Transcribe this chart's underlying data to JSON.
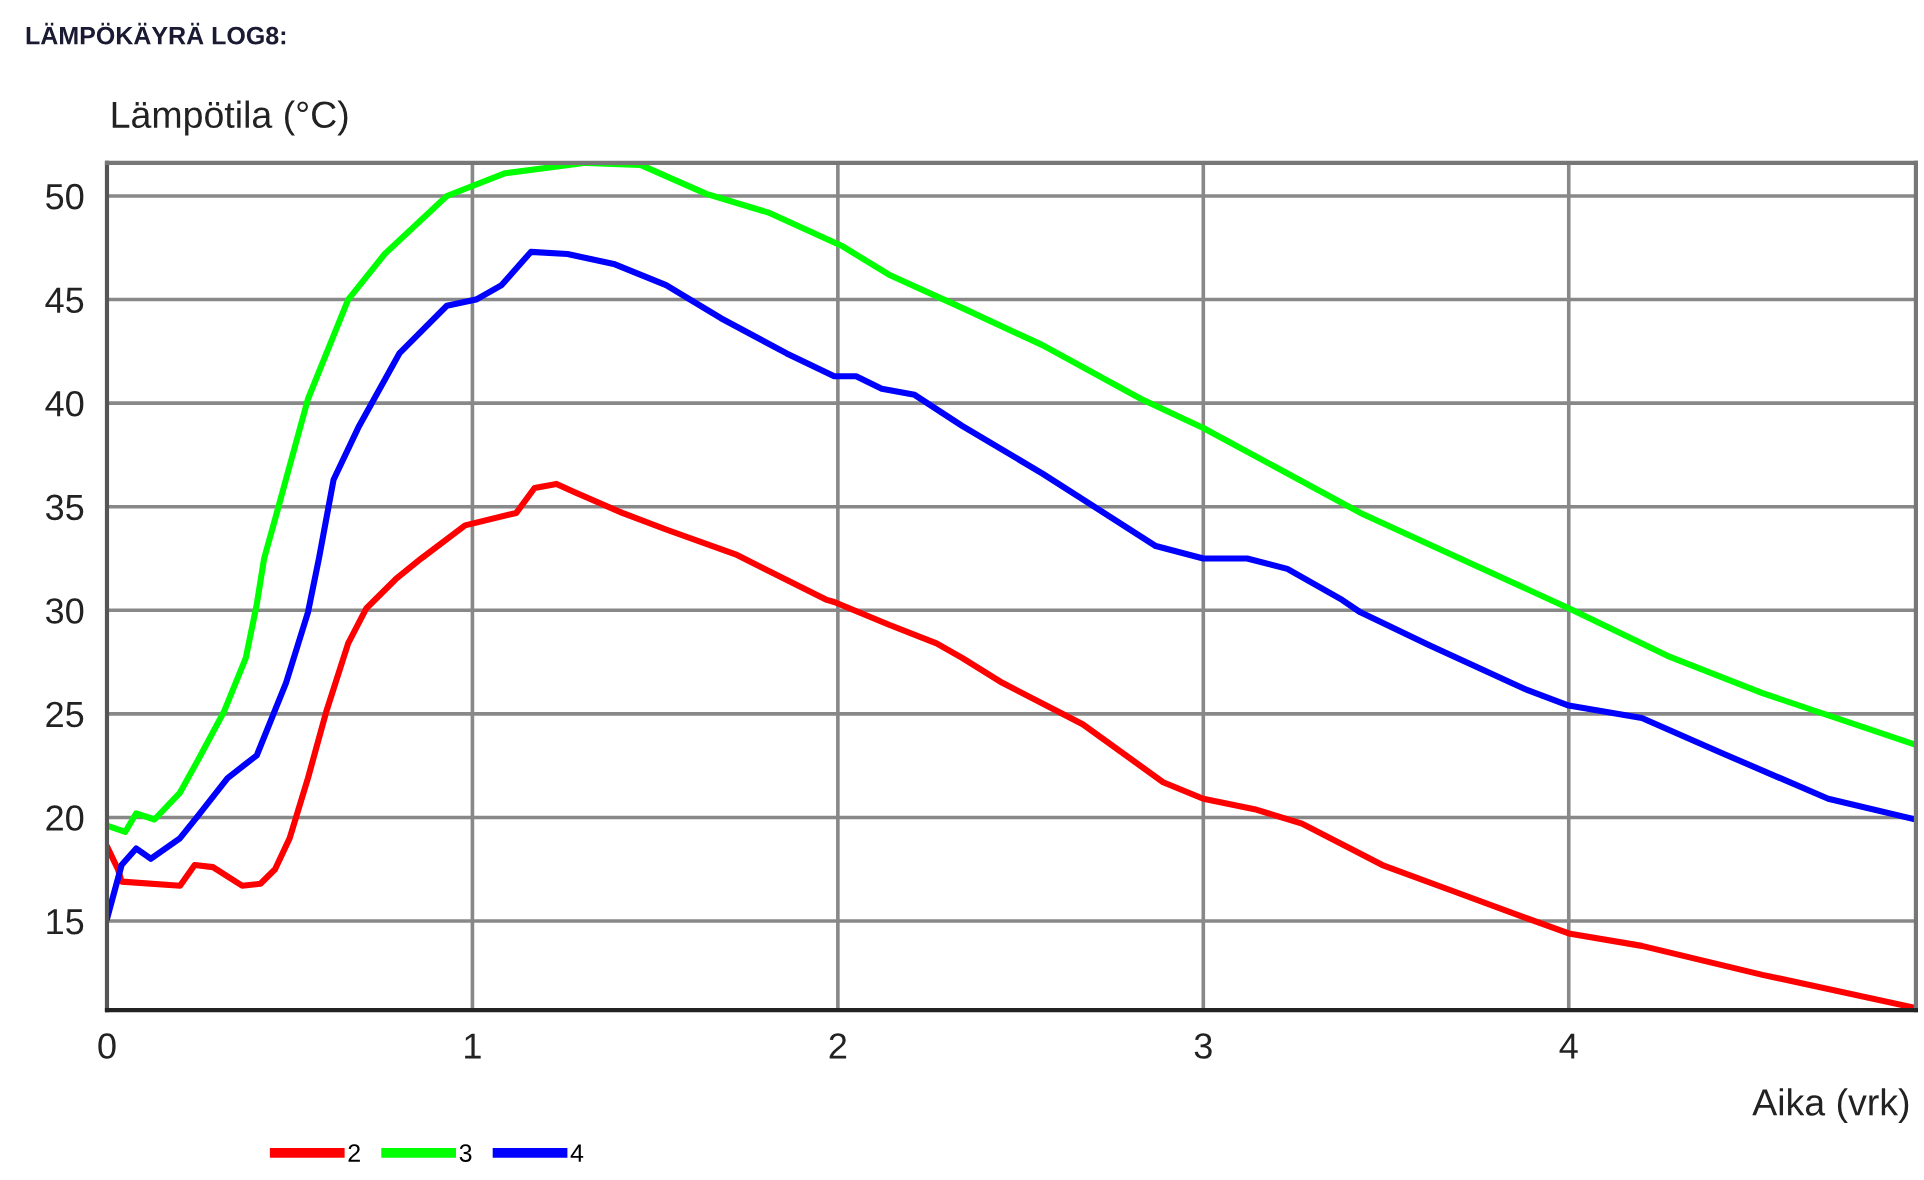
{
  "chart_data": {
    "type": "line",
    "title": "LÄMPÖKÄYRÄ LOG8:",
    "ylabel": "Lämpötila (°C)",
    "xlabel": "Aika (vrk)",
    "xlim": [
      0,
      4.95
    ],
    "ylim": [
      10.7,
      51.6
    ],
    "xticks": [
      0,
      1,
      2,
      3,
      4
    ],
    "yticks": [
      15,
      20,
      25,
      30,
      35,
      40,
      45,
      50
    ],
    "grid": true,
    "legend": "bottom",
    "line_style": "solid",
    "marker": "none",
    "series": [
      {
        "name": "2",
        "color": "#ff0000",
        "x": [
          0.0,
          0.03,
          0.04,
          0.2,
          0.24,
          0.29,
          0.37,
          0.42,
          0.46,
          0.5,
          0.55,
          0.6,
          0.66,
          0.71,
          0.79,
          0.86,
          0.98,
          1.12,
          1.17,
          1.23,
          1.28,
          1.41,
          1.53,
          1.72,
          1.97,
          1.99,
          2.14,
          2.27,
          2.34,
          2.45,
          2.67,
          2.89,
          3.0,
          3.14,
          3.27,
          3.49,
          3.69,
          3.89,
          4.0,
          4.2,
          4.53,
          4.95
        ],
        "values": [
          18.6,
          17.5,
          16.9,
          16.7,
          17.7,
          17.6,
          16.7,
          16.8,
          17.5,
          19.0,
          21.9,
          25.1,
          28.4,
          30.1,
          31.5,
          32.5,
          34.1,
          34.7,
          35.9,
          36.1,
          35.7,
          34.7,
          33.9,
          32.7,
          30.5,
          30.4,
          29.3,
          28.4,
          27.7,
          26.5,
          24.5,
          21.7,
          20.9,
          20.4,
          19.7,
          17.7,
          16.4,
          15.1,
          14.4,
          13.8,
          12.4,
          10.8
        ]
      },
      {
        "name": "3",
        "color": "#00ff00",
        "x": [
          0.0,
          0.05,
          0.08,
          0.13,
          0.2,
          0.25,
          0.32,
          0.38,
          0.41,
          0.43,
          0.46,
          0.55,
          0.66,
          0.76,
          0.93,
          1.09,
          1.31,
          1.46,
          1.64,
          1.81,
          2.01,
          2.14,
          2.34,
          2.56,
          2.83,
          3.0,
          3.43,
          4.0,
          4.27,
          4.53,
          4.95
        ],
        "values": [
          19.6,
          19.3,
          20.2,
          19.9,
          21.2,
          22.8,
          25.1,
          27.7,
          30.3,
          32.5,
          34.4,
          40.2,
          45.0,
          47.2,
          50.0,
          51.1,
          51.6,
          51.5,
          50.1,
          49.2,
          47.6,
          46.2,
          44.6,
          42.8,
          40.2,
          38.8,
          34.7,
          30.1,
          27.8,
          26.0,
          23.5
        ]
      },
      {
        "name": "4",
        "color": "#0000ff",
        "x": [
          0.0,
          0.04,
          0.08,
          0.12,
          0.2,
          0.25,
          0.33,
          0.41,
          0.49,
          0.55,
          0.58,
          0.62,
          0.69,
          0.8,
          0.93,
          1.01,
          1.08,
          1.16,
          1.26,
          1.39,
          1.53,
          1.68,
          1.86,
          1.99,
          2.05,
          2.12,
          2.21,
          2.34,
          2.56,
          2.87,
          3.0,
          3.12,
          3.23,
          3.38,
          3.43,
          3.62,
          3.88,
          4.0,
          4.2,
          4.42,
          4.71,
          4.95
        ],
        "values": [
          15.1,
          17.7,
          18.5,
          18.0,
          19.0,
          20.1,
          21.9,
          23.0,
          26.5,
          29.9,
          32.5,
          36.3,
          38.9,
          42.4,
          44.7,
          45.0,
          45.7,
          47.3,
          47.2,
          46.7,
          45.7,
          44.1,
          42.4,
          41.3,
          41.3,
          40.7,
          40.4,
          38.9,
          36.6,
          33.1,
          32.5,
          32.5,
          32.0,
          30.5,
          29.9,
          28.3,
          26.2,
          25.4,
          24.8,
          23.1,
          20.9,
          19.9
        ]
      }
    ]
  }
}
